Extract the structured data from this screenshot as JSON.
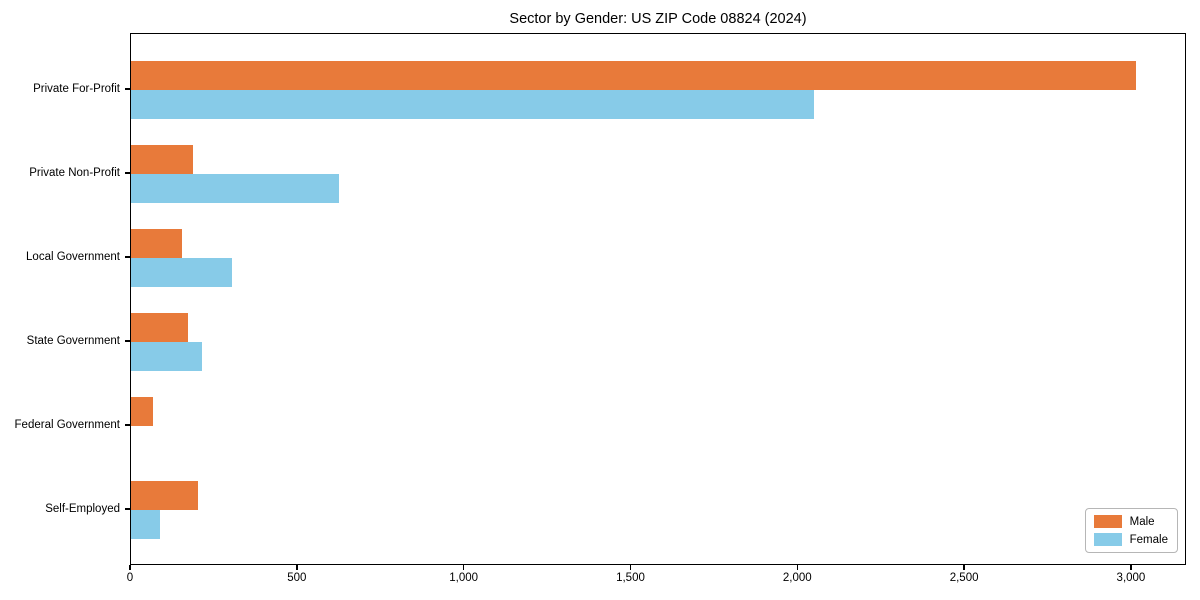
{
  "title": "Sector by Gender: US ZIP Code 08824 (2024)",
  "colors": {
    "male": "#e87a3a",
    "female": "#87cbe8",
    "axis": "#000000",
    "background": "#ffffff"
  },
  "legend": {
    "items": [
      {
        "label": "Male",
        "color": "#e87a3a"
      },
      {
        "label": "Female",
        "color": "#87cbe8"
      }
    ]
  },
  "x_axis": {
    "tick_labels": [
      "0",
      "500",
      "1,000",
      "1,500",
      "2,000",
      "2,500",
      "3,000"
    ],
    "tick_values": [
      0,
      500,
      1000,
      1500,
      2000,
      2500,
      3000
    ]
  },
  "chart_data": {
    "type": "bar",
    "orientation": "horizontal",
    "title": "Sector by Gender: US ZIP Code 08824 (2024)",
    "categories": [
      "Private For-Profit",
      "Private Non-Profit",
      "Local Government",
      "State Government",
      "Federal Government",
      "Self-Employed"
    ],
    "series": [
      {
        "name": "Male",
        "color": "#e87a3a",
        "values": [
          3013,
          186,
          152,
          170,
          65,
          201
        ]
      },
      {
        "name": "Female",
        "color": "#87cbe8",
        "values": [
          2048,
          624,
          303,
          213,
          0,
          88
        ]
      }
    ],
    "xlabel": "",
    "ylabel": "",
    "xlim": [
      0,
      3165
    ],
    "xticks": [
      0,
      500,
      1000,
      1500,
      2000,
      2500,
      3000
    ],
    "grid": false,
    "legend_position": "lower right"
  }
}
